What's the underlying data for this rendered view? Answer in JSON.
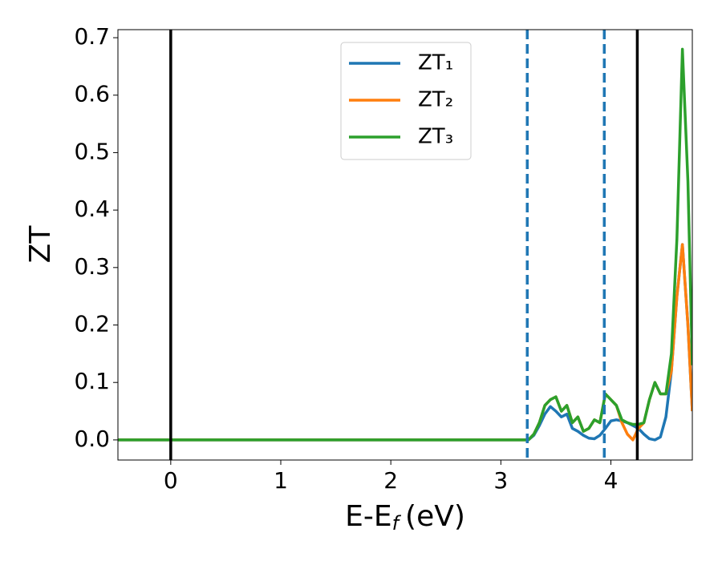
{
  "chart_data": {
    "type": "line",
    "x_label": {
      "main": "E-E",
      "sub": "f",
      "unit": "(eV)"
    },
    "y_label": "ZT",
    "x": [
      -0.48,
      3.25,
      3.3,
      3.35,
      3.4,
      3.45,
      3.5,
      3.55,
      3.6,
      3.65,
      3.7,
      3.75,
      3.8,
      3.85,
      3.9,
      3.95,
      4.0,
      4.05,
      4.1,
      4.15,
      4.2,
      4.25,
      4.3,
      4.35,
      4.4,
      4.45,
      4.5,
      4.55,
      4.6,
      4.65,
      4.7,
      4.74
    ],
    "series": [
      {
        "name": "ZT₁",
        "color": "#1f77b4",
        "values": [
          0,
          0,
          0.008,
          0.025,
          0.045,
          0.058,
          0.05,
          0.04,
          0.045,
          0.02,
          0.015,
          0.008,
          0.003,
          0.002,
          0.008,
          0.02,
          0.033,
          0.035,
          0.033,
          0.03,
          0.025,
          0.02,
          0.01,
          0.002,
          0,
          0.005,
          0.04,
          0.12,
          0.25,
          0.34,
          0.2,
          0.05
        ]
      },
      {
        "name": "ZT₂",
        "color": "#ff7f0e",
        "values": [
          0,
          0,
          0.01,
          0.03,
          0.06,
          0.07,
          0.075,
          0.05,
          0.06,
          0.03,
          0.04,
          0.015,
          0.02,
          0.035,
          0.03,
          0.08,
          0.07,
          0.06,
          0.03,
          0.01,
          0,
          0.02,
          0.03,
          0.07,
          0.1,
          0.08,
          0.08,
          0.12,
          0.25,
          0.34,
          0.2,
          0.05
        ]
      },
      {
        "name": "ZT₃",
        "color": "#2ca02c",
        "values": [
          0,
          0,
          0.01,
          0.03,
          0.06,
          0.07,
          0.075,
          0.05,
          0.06,
          0.03,
          0.04,
          0.015,
          0.02,
          0.035,
          0.03,
          0.08,
          0.07,
          0.06,
          0.035,
          0.03,
          0.027,
          0.027,
          0.03,
          0.07,
          0.1,
          0.08,
          0.08,
          0.15,
          0.35,
          0.68,
          0.45,
          0.13
        ]
      }
    ],
    "vlines": [
      {
        "x": 0,
        "color": "#000000",
        "style": "solid"
      },
      {
        "x": 3.24,
        "color": "#1f77b4",
        "style": "dashed"
      },
      {
        "x": 3.94,
        "color": "#1f77b4",
        "style": "dashed"
      },
      {
        "x": 4.24,
        "color": "#000000",
        "style": "solid"
      }
    ],
    "xlim": [
      -0.48,
      4.74
    ],
    "ylim": [
      -0.035,
      0.714
    ],
    "xticks": [
      0,
      1,
      2,
      3,
      4
    ],
    "yticks": [
      {
        "value": 0,
        "label": "0.0"
      },
      0.1,
      0.2,
      0.3,
      0.4,
      0.5,
      0.6,
      0.7
    ],
    "legend": "upper center"
  }
}
